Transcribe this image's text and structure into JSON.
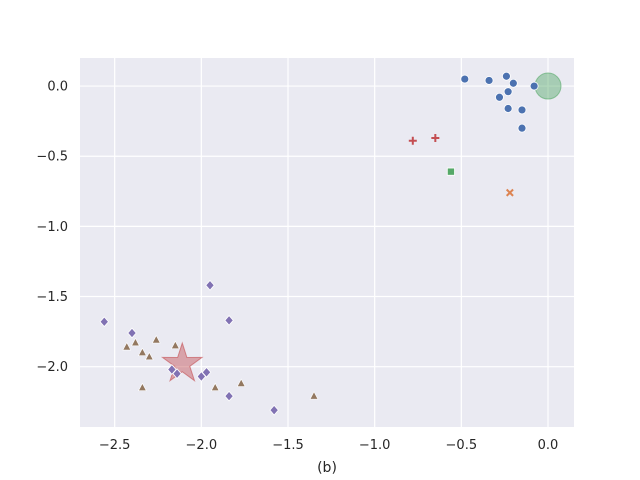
{
  "chart_data": {
    "type": "scatter",
    "xlabel": "(b)",
    "ylabel": "",
    "xlim": [
      -2.7,
      0.15
    ],
    "ylim": [
      -2.43,
      0.2
    ],
    "xticks": [
      -2.5,
      -2.0,
      -1.5,
      -1.0,
      -0.5,
      0.0
    ],
    "xtick_labels": [
      "−2.5",
      "−2.0",
      "−1.5",
      "−1.0",
      "−0.5",
      "0.0"
    ],
    "yticks": [
      0.0,
      -0.5,
      -1.0,
      -1.5,
      -2.0
    ],
    "ytick_labels": [
      "0.0",
      "−0.5",
      "−1.0",
      "−1.5",
      "−2.0"
    ],
    "grid": true,
    "background": "#eaeaf2",
    "series": [
      {
        "marker": "circle",
        "color": "#4c72b0",
        "points": [
          [
            -0.48,
            0.05
          ],
          [
            -0.34,
            0.04
          ],
          [
            -0.24,
            0.07
          ],
          [
            -0.2,
            0.02
          ],
          [
            -0.23,
            -0.04
          ],
          [
            -0.08,
            0.0
          ],
          [
            -0.28,
            -0.08
          ],
          [
            -0.23,
            -0.16
          ],
          [
            -0.15,
            -0.17
          ],
          [
            -0.15,
            -0.3
          ]
        ]
      },
      {
        "marker": "x",
        "color": "#dd8452",
        "points": [
          [
            -0.22,
            -0.76
          ]
        ]
      },
      {
        "marker": "square",
        "color": "#55a868",
        "points": [
          [
            -0.56,
            -0.61
          ]
        ]
      },
      {
        "marker": "plus",
        "color": "#c44e52",
        "points": [
          [
            -0.78,
            -0.39
          ],
          [
            -0.65,
            -0.37
          ]
        ]
      },
      {
        "marker": "diamond",
        "color": "#8172b3",
        "points": [
          [
            -2.56,
            -1.68
          ],
          [
            -2.4,
            -1.76
          ],
          [
            -1.95,
            -1.42
          ],
          [
            -1.84,
            -1.67
          ],
          [
            -2.17,
            -2.02
          ],
          [
            -1.97,
            -2.04
          ],
          [
            -2.0,
            -2.07
          ],
          [
            -1.84,
            -2.21
          ],
          [
            -1.58,
            -2.31
          ],
          [
            -2.14,
            -2.05
          ]
        ]
      },
      {
        "marker": "triangle",
        "color": "#937860",
        "points": [
          [
            -2.43,
            -1.86
          ],
          [
            -2.38,
            -1.83
          ],
          [
            -2.34,
            -1.9
          ],
          [
            -2.3,
            -1.93
          ],
          [
            -2.26,
            -1.81
          ],
          [
            -2.15,
            -1.85
          ],
          [
            -2.34,
            -2.15
          ],
          [
            -1.92,
            -2.15
          ],
          [
            -1.77,
            -2.12
          ],
          [
            -1.35,
            -2.21
          ]
        ]
      }
    ],
    "highlights": [
      {
        "shape": "circle",
        "color": "#55a868",
        "x": 0.0,
        "y": 0.0,
        "radius": 0.075
      },
      {
        "shape": "star",
        "color": "#c44e52",
        "x": -2.11,
        "y": -1.98,
        "radius": 0.12
      }
    ]
  }
}
